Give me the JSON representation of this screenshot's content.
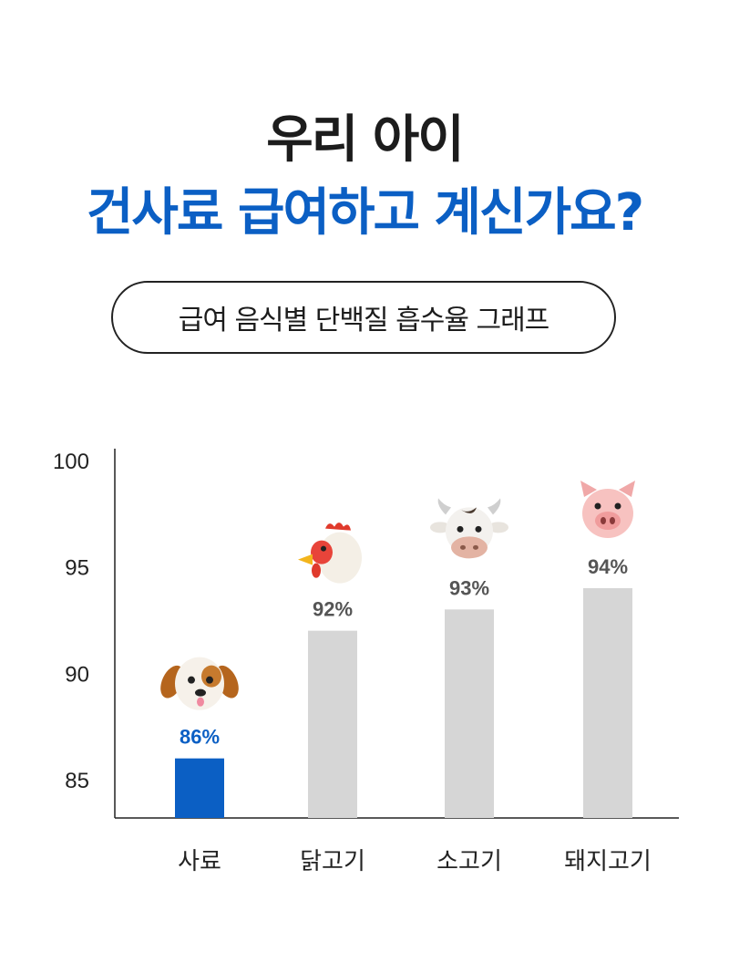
{
  "header": {
    "title_line1": "우리 아이",
    "title_line2": "건사료 급여하고 계신가요?",
    "subtitle": "급여 음식별 단백질 흡수율 그래프"
  },
  "colors": {
    "highlight_bar": "#0b5fc4",
    "normal_bar": "#d6d6d6",
    "highlight_label": "#0b5fc4",
    "normal_label": "#555555",
    "title_accent": "#0b5fc4"
  },
  "chart_data": {
    "type": "bar",
    "title": "급여 음식별 단백질 흡수율 그래프",
    "xlabel": "",
    "ylabel": "",
    "categories": [
      "사료",
      "닭고기",
      "소고기",
      "돼지고기"
    ],
    "values": [
      86,
      92,
      93,
      94
    ],
    "data_labels": [
      "86%",
      "92%",
      "93%",
      "94%"
    ],
    "icons": [
      "dog-face-icon",
      "chicken-icon",
      "cow-face-icon",
      "pig-face-icon"
    ],
    "highlight_index": 0,
    "yticks": [
      85,
      90,
      95,
      100
    ],
    "ylim": [
      83.2,
      101.5
    ],
    "grid": false,
    "legend": "none"
  }
}
